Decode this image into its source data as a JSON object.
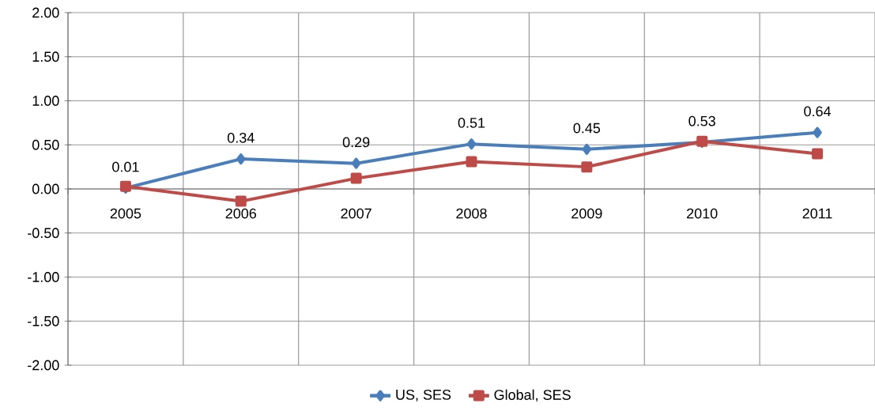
{
  "chart_data": {
    "type": "line",
    "categories": [
      "2005",
      "2006",
      "2007",
      "2008",
      "2009",
      "2010",
      "2011"
    ],
    "series": [
      {
        "name": "US, SES",
        "color": "#4a7ebb",
        "marker": "diamond",
        "values": [
          0.01,
          0.34,
          0.29,
          0.51,
          0.45,
          0.53,
          0.64
        ],
        "value_labels": [
          "0.01",
          "0.34",
          "0.29",
          "0.51",
          "0.45",
          "0.53",
          "0.64"
        ]
      },
      {
        "name": "Global, SES",
        "color": "#be4b48",
        "marker": "square",
        "values": [
          0.03,
          -0.14,
          0.12,
          0.31,
          0.25,
          0.54,
          0.4
        ]
      }
    ],
    "ylim": [
      -2,
      2
    ],
    "yticks": [
      {
        "value": -2,
        "label": "-2.00"
      },
      {
        "value": -1.5,
        "label": "-1.50"
      },
      {
        "value": -1,
        "label": "-1.00"
      },
      {
        "value": -0.5,
        "label": "-0.50"
      },
      {
        "value": 0,
        "label": "0.00"
      },
      {
        "value": 0.5,
        "label": "0.50"
      },
      {
        "value": 1,
        "label": "1.00"
      },
      {
        "value": 1.5,
        "label": "1.50"
      },
      {
        "value": 2,
        "label": "2.00"
      }
    ],
    "grid": true,
    "legend": "bottom",
    "line_style": "solid"
  }
}
